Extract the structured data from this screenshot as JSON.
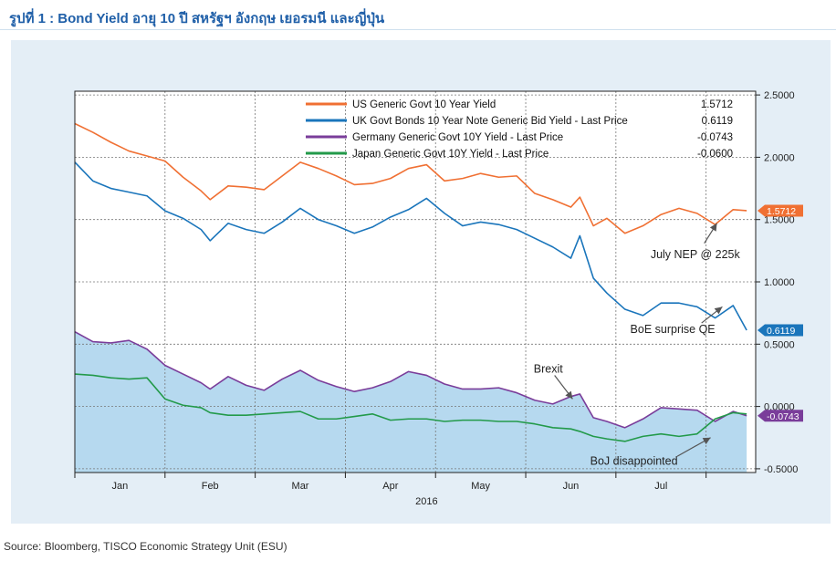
{
  "title": "รูปที่ 1 : Bond Yield อายุ 10 ปี สหรัฐฯ อังกฤษ เยอรมนี และญี่ปุ่น",
  "source": "Source: Bloomberg, TISCO Economic Strategy Unit (ESU)",
  "colors": {
    "panel": "#e4eef6",
    "us": "#f07033",
    "uk": "#1a75bb",
    "de": "#7a3d9a",
    "jp": "#239a4a",
    "area": "#b6d9ef"
  },
  "chart_data": {
    "type": "line",
    "title": "",
    "xlabel": "2016",
    "ylabel": "",
    "ylim": [
      -0.53,
      2.53
    ],
    "yticks": [
      "2.5000",
      "2.0000",
      "1.5000",
      "1.0000",
      "0.5000",
      "0.0000",
      "-0.5000"
    ],
    "ytick_values": [
      2.5,
      2.0,
      1.5,
      1.0,
      0.5,
      0.0,
      -0.5
    ],
    "months": [
      "Jan",
      "Feb",
      "Mar",
      "Apr",
      "May",
      "Jun",
      "Jul"
    ],
    "month_positions": [
      0.5,
      1.5,
      2.5,
      3.5,
      4.5,
      5.5,
      6.5
    ],
    "x_grid": [
      1,
      2,
      3,
      4,
      5,
      6,
      7
    ],
    "xlim": [
      0,
      7.55
    ],
    "year_label": "2016",
    "legend": [
      {
        "key": "us",
        "label": "US Generic Govt 10 Year Yield",
        "last": "1.5712"
      },
      {
        "key": "uk",
        "label": "UK Govt Bonds 10 Year Note Generic Bid Yield - Last Price",
        "last": "0.6119"
      },
      {
        "key": "de",
        "label": "Germany Generic Govt 10Y Yield - Last Price",
        "last": "-0.0743"
      },
      {
        "key": "jp",
        "label": "Japan Generic Govt 10Y Yield - Last Price",
        "last": "-0.0600"
      }
    ],
    "end_labels": [
      {
        "key": "us",
        "text": "1.5712",
        "value": 1.5712
      },
      {
        "key": "uk",
        "text": "0.6119",
        "value": 0.6119
      },
      {
        "key": "de",
        "text": "-0.0743",
        "value": -0.0743
      }
    ],
    "series": [
      {
        "key": "us",
        "name": "US Generic Govt 10 Year Yield",
        "fill": false,
        "x": [
          0.0,
          0.2,
          0.4,
          0.6,
          0.8,
          1.0,
          1.2,
          1.4,
          1.5,
          1.7,
          1.9,
          2.1,
          2.3,
          2.5,
          2.7,
          2.9,
          3.1,
          3.3,
          3.5,
          3.7,
          3.9,
          4.1,
          4.3,
          4.5,
          4.7,
          4.9,
          5.1,
          5.3,
          5.5,
          5.6,
          5.75,
          5.9,
          6.1,
          6.3,
          6.5,
          6.7,
          6.9,
          7.1,
          7.3,
          7.45
        ],
        "values": [
          2.27,
          2.2,
          2.12,
          2.05,
          2.01,
          1.97,
          1.84,
          1.73,
          1.66,
          1.77,
          1.76,
          1.74,
          1.85,
          1.96,
          1.91,
          1.85,
          1.78,
          1.79,
          1.83,
          1.91,
          1.94,
          1.81,
          1.83,
          1.87,
          1.84,
          1.85,
          1.71,
          1.66,
          1.6,
          1.68,
          1.45,
          1.51,
          1.39,
          1.45,
          1.54,
          1.59,
          1.55,
          1.46,
          1.58,
          1.5712
        ]
      },
      {
        "key": "uk",
        "name": "UK Govt Bonds 10 Year Note Generic Bid Yield - Last Price",
        "fill": false,
        "x": [
          0.0,
          0.2,
          0.4,
          0.6,
          0.8,
          1.0,
          1.2,
          1.4,
          1.5,
          1.7,
          1.9,
          2.1,
          2.3,
          2.5,
          2.7,
          2.9,
          3.1,
          3.3,
          3.5,
          3.7,
          3.9,
          4.1,
          4.3,
          4.5,
          4.7,
          4.9,
          5.1,
          5.3,
          5.5,
          5.6,
          5.75,
          5.9,
          6.1,
          6.3,
          6.5,
          6.7,
          6.9,
          7.1,
          7.3,
          7.45
        ],
        "values": [
          1.96,
          1.81,
          1.75,
          1.72,
          1.69,
          1.57,
          1.51,
          1.42,
          1.33,
          1.47,
          1.42,
          1.39,
          1.48,
          1.59,
          1.5,
          1.45,
          1.39,
          1.44,
          1.52,
          1.58,
          1.67,
          1.55,
          1.45,
          1.48,
          1.46,
          1.42,
          1.35,
          1.28,
          1.19,
          1.37,
          1.03,
          0.91,
          0.78,
          0.73,
          0.83,
          0.83,
          0.8,
          0.71,
          0.81,
          0.6119
        ]
      },
      {
        "key": "de",
        "name": "Germany Generic Govt 10Y Yield - Last Price",
        "fill": true,
        "x": [
          0.0,
          0.2,
          0.4,
          0.6,
          0.8,
          1.0,
          1.2,
          1.4,
          1.5,
          1.7,
          1.9,
          2.1,
          2.3,
          2.5,
          2.7,
          2.9,
          3.1,
          3.3,
          3.5,
          3.7,
          3.9,
          4.1,
          4.3,
          4.5,
          4.7,
          4.9,
          5.1,
          5.3,
          5.5,
          5.6,
          5.75,
          5.9,
          6.1,
          6.3,
          6.5,
          6.7,
          6.9,
          7.1,
          7.3,
          7.45
        ],
        "values": [
          0.6,
          0.52,
          0.51,
          0.53,
          0.46,
          0.33,
          0.26,
          0.19,
          0.14,
          0.24,
          0.17,
          0.13,
          0.22,
          0.29,
          0.21,
          0.16,
          0.12,
          0.15,
          0.2,
          0.28,
          0.25,
          0.18,
          0.14,
          0.14,
          0.15,
          0.11,
          0.05,
          0.02,
          0.08,
          0.1,
          -0.09,
          -0.12,
          -0.17,
          -0.1,
          -0.01,
          -0.02,
          -0.03,
          -0.12,
          -0.04,
          -0.0743
        ]
      },
      {
        "key": "jp",
        "name": "Japan Generic Govt 10Y Yield - Last Price",
        "fill": false,
        "x": [
          0.0,
          0.2,
          0.4,
          0.6,
          0.8,
          1.0,
          1.2,
          1.4,
          1.5,
          1.7,
          1.9,
          2.1,
          2.3,
          2.5,
          2.7,
          2.9,
          3.1,
          3.3,
          3.5,
          3.7,
          3.9,
          4.1,
          4.3,
          4.5,
          4.7,
          4.9,
          5.1,
          5.3,
          5.5,
          5.6,
          5.75,
          5.9,
          6.1,
          6.3,
          6.5,
          6.7,
          6.9,
          7.1,
          7.3,
          7.45
        ],
        "values": [
          0.26,
          0.25,
          0.23,
          0.22,
          0.23,
          0.06,
          0.01,
          -0.01,
          -0.05,
          -0.07,
          -0.07,
          -0.06,
          -0.05,
          -0.04,
          -0.1,
          -0.1,
          -0.08,
          -0.06,
          -0.11,
          -0.1,
          -0.1,
          -0.12,
          -0.11,
          -0.11,
          -0.12,
          -0.12,
          -0.14,
          -0.17,
          -0.18,
          -0.2,
          -0.24,
          -0.26,
          -0.28,
          -0.24,
          -0.22,
          -0.24,
          -0.22,
          -0.1,
          -0.05,
          -0.06
        ]
      }
    ],
    "annotations": [
      {
        "text": "July NEP @ 225k",
        "label_x": 6.88,
        "label_y": 1.22,
        "tip_x": 7.12,
        "tip_y": 1.47,
        "tail_x": 6.98,
        "tail_y": 1.31,
        "anchor": "middle"
      },
      {
        "text": "BoE surprise QE",
        "label_x": 6.63,
        "label_y": 0.62,
        "tip_x": 7.18,
        "tip_y": 0.8,
        "tail_x": 6.95,
        "tail_y": 0.67,
        "anchor": "middle"
      },
      {
        "text": "Brexit",
        "label_x": 5.25,
        "label_y": 0.3,
        "tip_x": 5.52,
        "tip_y": 0.06,
        "tail_x": 5.32,
        "tail_y": 0.25,
        "anchor": "middle"
      },
      {
        "text": "BoJ disappointed",
        "label_x": 6.2,
        "label_y": -0.44,
        "tip_x": 7.05,
        "tip_y": -0.25,
        "tail_x": 6.68,
        "tail_y": -0.4,
        "anchor": "middle"
      }
    ]
  }
}
